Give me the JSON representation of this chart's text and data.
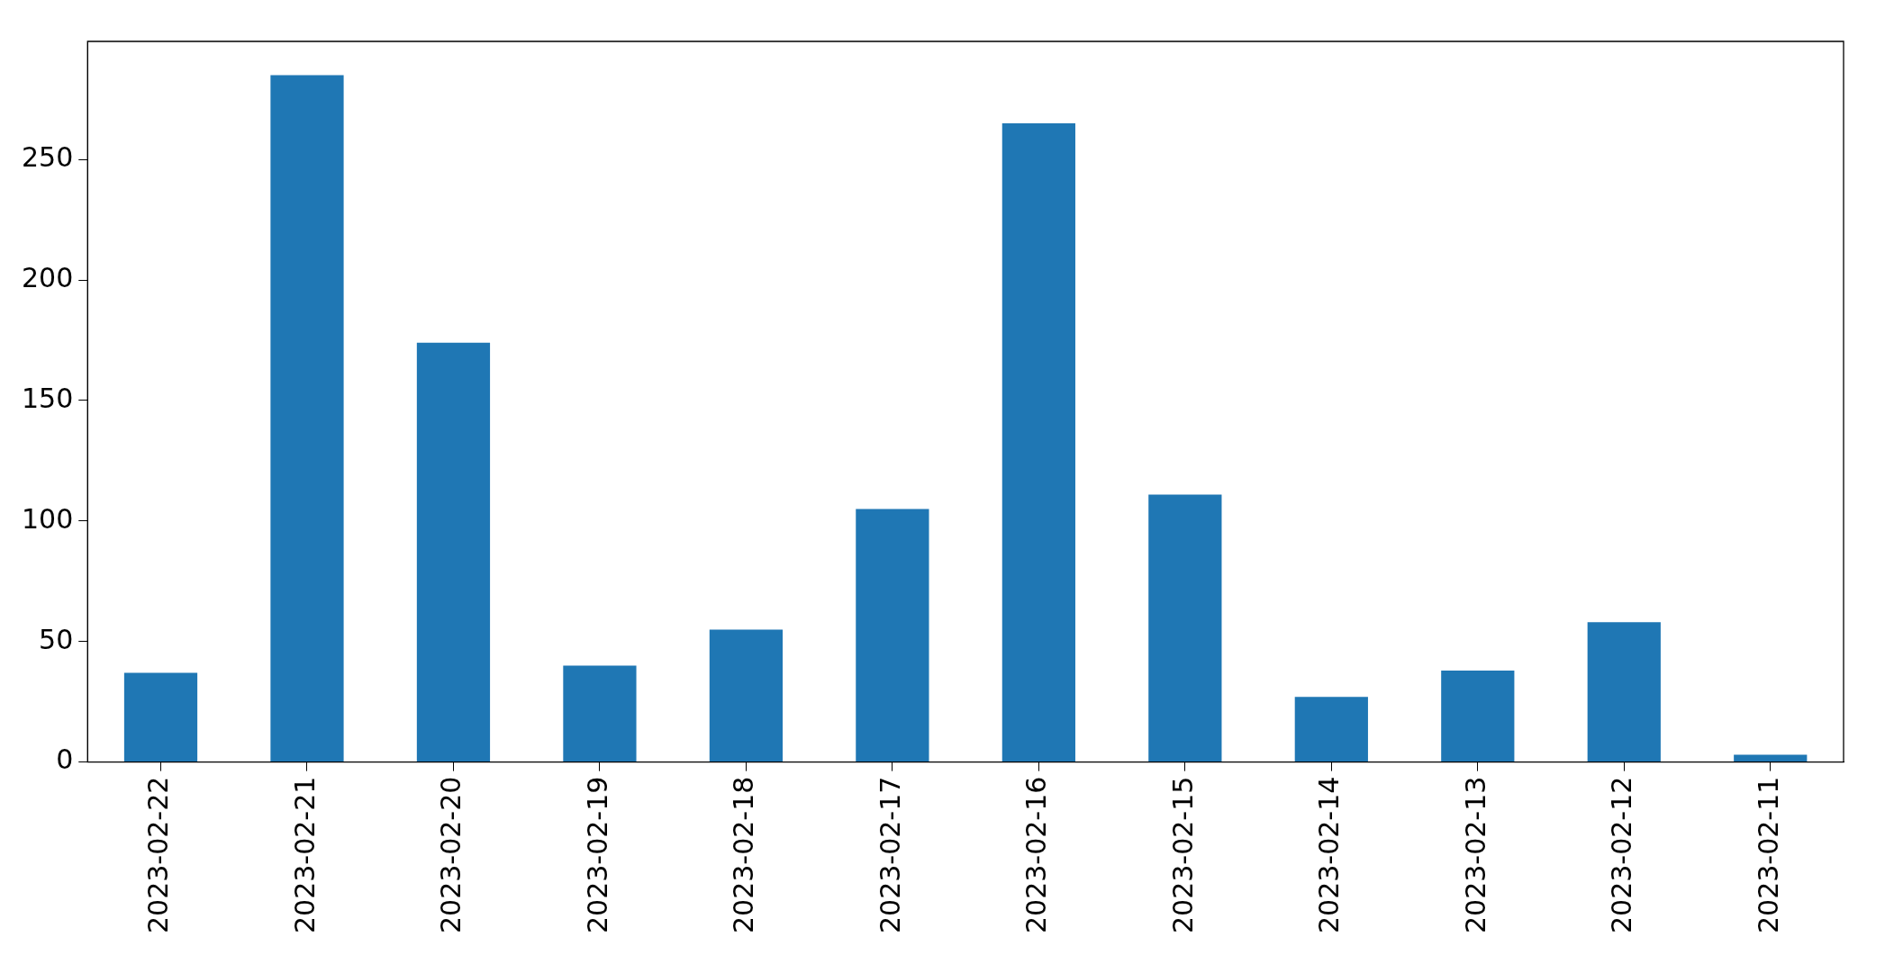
{
  "chart_data": {
    "type": "bar",
    "categories": [
      "2023-02-22",
      "2023-02-21",
      "2023-02-20",
      "2023-02-19",
      "2023-02-18",
      "2023-02-17",
      "2023-02-16",
      "2023-02-15",
      "2023-02-14",
      "2023-02-13",
      "2023-02-12",
      "2023-02-11"
    ],
    "values": [
      37,
      285,
      174,
      40,
      55,
      105,
      265,
      111,
      27,
      38,
      58,
      3
    ],
    "color": "#1f77b4",
    "ylim": [
      0,
      299
    ],
    "yticks": [
      0,
      50,
      100,
      150,
      200,
      250
    ],
    "grid": false,
    "legend": false
  }
}
